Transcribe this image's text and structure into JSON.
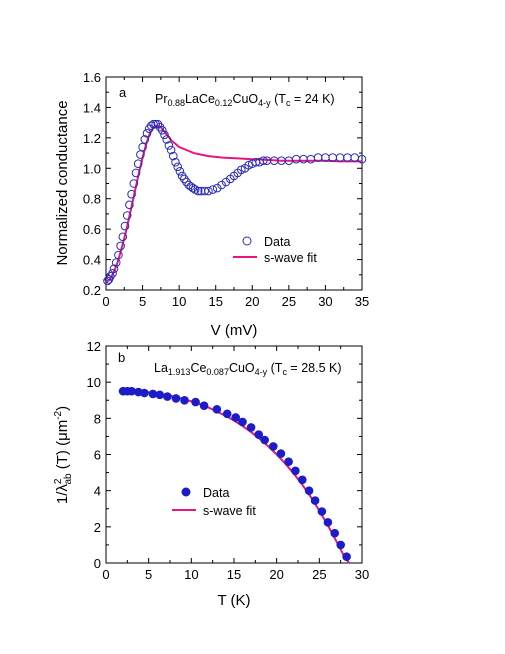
{
  "chart_data": [
    {
      "type": "scatter",
      "panel_label": "a",
      "title": {
        "prefix": "Pr",
        "sub1": "0.88",
        "mid": "LaCe",
        "sub2": "0.12",
        "mid2": "CuO",
        "sub3": "4-y",
        "paren": " (T",
        "sub4": "c",
        "tail": " = 24 K)"
      },
      "xlabel": "V (mV)",
      "ylabel": "Normalized conductance",
      "xlim": [
        0,
        35
      ],
      "ylim": [
        0.2,
        1.6
      ],
      "xticks": [
        "0",
        "5",
        "10",
        "15",
        "20",
        "25",
        "30",
        "35"
      ],
      "yticks": [
        "0.2",
        "0.4",
        "0.6",
        "0.8",
        "1.0",
        "1.2",
        "1.4",
        "1.6"
      ],
      "legend_position": "lower-right",
      "colors": {
        "data": "#2b2bb5",
        "fit": "#e8157c"
      },
      "series": [
        {
          "name": "Data",
          "marker": "open-circle",
          "x": [
            0.2,
            0.4,
            0.6,
            0.9,
            1.1,
            1.4,
            1.7,
            2.0,
            2.3,
            2.6,
            2.9,
            3.2,
            3.5,
            3.8,
            4.1,
            4.4,
            4.7,
            5.0,
            5.3,
            5.6,
            5.9,
            6.2,
            6.5,
            6.8,
            7.1,
            7.4,
            7.7,
            8.0,
            8.3,
            8.6,
            8.9,
            9.2,
            9.5,
            9.8,
            10.1,
            10.4,
            10.7,
            11.0,
            11.3,
            11.6,
            11.9,
            12.2,
            12.6,
            13.0,
            13.5,
            14.0,
            14.6,
            15.2,
            15.8,
            16.4,
            17.0,
            17.5,
            18.0,
            18.5,
            19.0,
            19.5,
            20.0,
            20.5,
            21.0,
            21.5,
            22.0,
            23.0,
            24.0,
            25.0,
            26.0,
            27.0,
            28.0,
            29.0,
            30.0,
            31.0,
            32.0,
            33.0,
            34.0,
            35.0
          ],
          "y": [
            0.26,
            0.27,
            0.29,
            0.31,
            0.34,
            0.38,
            0.43,
            0.49,
            0.55,
            0.62,
            0.69,
            0.76,
            0.83,
            0.9,
            0.97,
            1.03,
            1.09,
            1.14,
            1.19,
            1.23,
            1.26,
            1.28,
            1.29,
            1.29,
            1.29,
            1.27,
            1.25,
            1.22,
            1.19,
            1.15,
            1.12,
            1.08,
            1.04,
            1.01,
            0.98,
            0.95,
            0.93,
            0.91,
            0.89,
            0.88,
            0.87,
            0.86,
            0.85,
            0.85,
            0.85,
            0.85,
            0.86,
            0.87,
            0.89,
            0.91,
            0.93,
            0.95,
            0.97,
            0.99,
            1.0,
            1.02,
            1.03,
            1.04,
            1.04,
            1.05,
            1.05,
            1.05,
            1.05,
            1.05,
            1.06,
            1.06,
            1.06,
            1.07,
            1.07,
            1.07,
            1.07,
            1.07,
            1.07,
            1.06
          ]
        },
        {
          "name": "s-wave fit",
          "marker": "line",
          "x": [
            0,
            0.5,
            1,
            1.5,
            2,
            2.5,
            3,
            3.5,
            4,
            4.5,
            5,
            5.5,
            6,
            6.5,
            7,
            7.5,
            8,
            8.5,
            9,
            9.5,
            10,
            11,
            12,
            13,
            14,
            15,
            16,
            18,
            20,
            22,
            24,
            26,
            28,
            30,
            32,
            35
          ],
          "y": [
            0.25,
            0.27,
            0.31,
            0.37,
            0.45,
            0.54,
            0.64,
            0.75,
            0.86,
            0.97,
            1.07,
            1.16,
            1.23,
            1.27,
            1.28,
            1.27,
            1.24,
            1.21,
            1.18,
            1.16,
            1.14,
            1.12,
            1.1,
            1.09,
            1.08,
            1.075,
            1.07,
            1.065,
            1.06,
            1.055,
            1.05,
            1.05,
            1.05,
            1.05,
            1.045,
            1.045
          ]
        }
      ]
    },
    {
      "type": "scatter",
      "panel_label": "b",
      "title": {
        "prefix": "La",
        "sub1": "1.913",
        "mid": "Ce",
        "sub2": "0.087",
        "mid2": "CuO",
        "sub3": "4-y",
        "paren": " (T",
        "sub4": "c",
        "tail": " = 28.5 K)"
      },
      "xlabel": "T (K)",
      "ylabel": {
        "a": "1/λ",
        "sup": "2",
        "sub": "ab",
        "b": " (T)  (μm",
        "sup2": "-2",
        "c": ")"
      },
      "xlim": [
        0,
        30
      ],
      "ylim": [
        0,
        12
      ],
      "xticks": [
        "0",
        "5",
        "10",
        "15",
        "20",
        "25",
        "30"
      ],
      "yticks": [
        "0",
        "2",
        "4",
        "6",
        "8",
        "10",
        "12"
      ],
      "legend_position": "lower-left",
      "colors": {
        "data": "#1c1cc8",
        "fit": "#e8157c"
      },
      "series": [
        {
          "name": "Data",
          "marker": "filled-circle",
          "x": [
            2.0,
            2.5,
            3.0,
            3.8,
            4.5,
            5.5,
            6.3,
            7.2,
            8.2,
            9.2,
            10.5,
            11.5,
            13.0,
            14.2,
            15.2,
            16.0,
            17.0,
            17.9,
            18.6,
            19.6,
            20.5,
            21.4,
            22.2,
            23.0,
            23.8,
            24.5,
            25.3,
            26.0,
            26.8,
            27.5,
            28.2
          ],
          "y": [
            9.5,
            9.5,
            9.5,
            9.45,
            9.4,
            9.35,
            9.3,
            9.2,
            9.1,
            9.0,
            8.9,
            8.7,
            8.5,
            8.25,
            8.05,
            7.8,
            7.5,
            7.1,
            6.8,
            6.45,
            6.05,
            5.6,
            5.1,
            4.6,
            4.0,
            3.45,
            2.85,
            2.25,
            1.65,
            1.0,
            0.35
          ]
        },
        {
          "name": "s-wave fit",
          "marker": "line",
          "x": [
            1.5,
            3,
            4,
            5,
            6,
            7,
            8,
            9,
            10,
            11,
            12,
            13,
            14,
            15,
            16,
            17,
            18,
            19,
            20,
            21,
            22,
            23,
            24,
            25,
            26,
            27,
            28,
            28.5
          ],
          "y": [
            9.52,
            9.5,
            9.48,
            9.44,
            9.38,
            9.3,
            9.2,
            9.08,
            8.94,
            8.78,
            8.6,
            8.38,
            8.14,
            7.88,
            7.58,
            7.24,
            6.87,
            6.46,
            6.0,
            5.5,
            4.95,
            4.33,
            3.65,
            2.9,
            2.08,
            1.2,
            0.3,
            0.0
          ]
        }
      ]
    }
  ]
}
